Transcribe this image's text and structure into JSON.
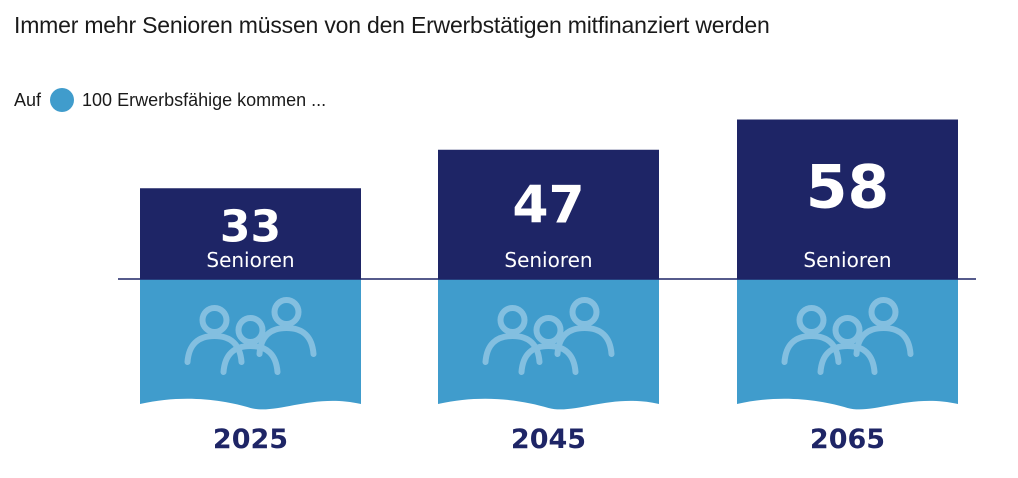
{
  "title": "Immer mehr Senioren müssen von den Erwerbstätigen mitfinanziert werden",
  "legend": {
    "prefix": "Auf",
    "suffix": "100 Erwerbsfähige kommen ...",
    "dot_color": "#409ccc"
  },
  "colors": {
    "seniors": "#1e2566",
    "workers": "#409ccc",
    "icon": "#83bfe0",
    "year_text": "#1e2566"
  },
  "chart_data": {
    "type": "bar",
    "title": "Immer mehr Senioren müssen von den Erwerbstätigen mitfinanziert werden",
    "categories": [
      "2025",
      "2045",
      "2065"
    ],
    "series": [
      {
        "name": "Senioren",
        "values": [
          33,
          47,
          58
        ]
      }
    ],
    "unit_label": "Senioren",
    "baseline_reference": 100,
    "baseline_label": "100 Erwerbsfähige",
    "ylim": [
      0,
      100
    ],
    "grid": false
  }
}
